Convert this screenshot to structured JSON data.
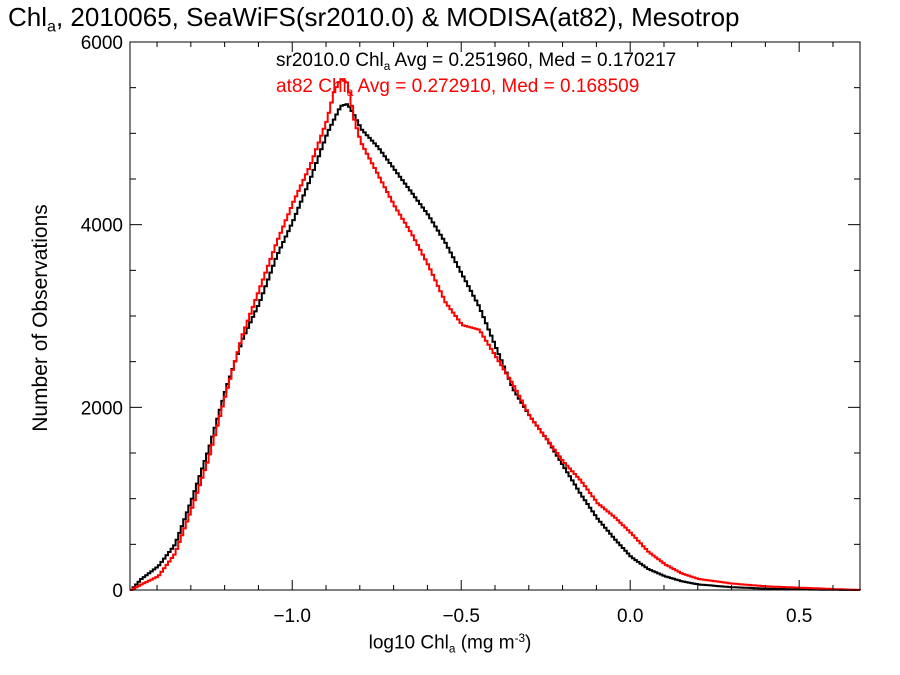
{
  "chart_data": {
    "type": "line",
    "title_parts": {
      "pre": "Chl",
      "sub": "a",
      "post": ", 2010065, SeaWiFS(sr2010.0) & MODISA(at82), Mesotrop"
    },
    "xlabel_parts": {
      "pre": "log10 Chl",
      "sub": "a",
      "mid": " (mg m",
      "sup": "-3",
      "post": ")"
    },
    "ylabel": "Number of Observations",
    "xlim": [
      -1.48,
      0.68
    ],
    "ylim": [
      0,
      6000
    ],
    "x_ticks": [
      -1.0,
      -0.5,
      0.0,
      0.5
    ],
    "x_tick_labels": [
      "−1.0",
      "−0.5",
      "0.0",
      "0.5"
    ],
    "y_ticks": [
      0,
      2000,
      4000,
      6000
    ],
    "y_tick_labels": [
      "0",
      "2000",
      "4000",
      "6000"
    ],
    "step_style": true,
    "series": [
      {
        "id": "black",
        "color": "#000000",
        "legend_parts": {
          "pre": "sr2010.0 Chl",
          "sub": "a",
          "post": " Avg = 0.251960, Med = 0.170217"
        },
        "points": [
          [
            -1.48,
            0
          ],
          [
            -1.45,
            120
          ],
          [
            -1.4,
            260
          ],
          [
            -1.35,
            500
          ],
          [
            -1.3,
            1000
          ],
          [
            -1.25,
            1550
          ],
          [
            -1.2,
            2200
          ],
          [
            -1.15,
            2750
          ],
          [
            -1.1,
            3150
          ],
          [
            -1.05,
            3650
          ],
          [
            -1.0,
            4050
          ],
          [
            -0.95,
            4500
          ],
          [
            -0.9,
            5000
          ],
          [
            -0.88,
            5150
          ],
          [
            -0.86,
            5300
          ],
          [
            -0.84,
            5320
          ],
          [
            -0.82,
            5200
          ],
          [
            -0.8,
            5050
          ],
          [
            -0.75,
            4850
          ],
          [
            -0.7,
            4600
          ],
          [
            -0.65,
            4350
          ],
          [
            -0.6,
            4100
          ],
          [
            -0.55,
            3800
          ],
          [
            -0.5,
            3450
          ],
          [
            -0.45,
            3100
          ],
          [
            -0.4,
            2650
          ],
          [
            -0.35,
            2200
          ],
          [
            -0.3,
            1900
          ],
          [
            -0.25,
            1650
          ],
          [
            -0.2,
            1350
          ],
          [
            -0.15,
            1050
          ],
          [
            -0.1,
            780
          ],
          [
            -0.05,
            560
          ],
          [
            0.0,
            360
          ],
          [
            0.05,
            230
          ],
          [
            0.1,
            150
          ],
          [
            0.15,
            95
          ],
          [
            0.2,
            60
          ],
          [
            0.3,
            30
          ],
          [
            0.4,
            15
          ],
          [
            0.5,
            6
          ],
          [
            0.6,
            2
          ],
          [
            0.68,
            0
          ]
        ]
      },
      {
        "id": "red",
        "color": "#ff0000",
        "legend_parts": {
          "pre": "at82 Chl",
          "sub": "a",
          "post": " Avg = 0.272910, Med = 0.168509"
        },
        "points": [
          [
            -1.48,
            0
          ],
          [
            -1.45,
            60
          ],
          [
            -1.4,
            150
          ],
          [
            -1.35,
            400
          ],
          [
            -1.3,
            900
          ],
          [
            -1.25,
            1450
          ],
          [
            -1.2,
            2150
          ],
          [
            -1.15,
            2800
          ],
          [
            -1.1,
            3300
          ],
          [
            -1.05,
            3800
          ],
          [
            -1.0,
            4250
          ],
          [
            -0.95,
            4650
          ],
          [
            -0.9,
            5150
          ],
          [
            -0.88,
            5450
          ],
          [
            -0.86,
            5600
          ],
          [
            -0.84,
            5550
          ],
          [
            -0.82,
            5150
          ],
          [
            -0.8,
            4900
          ],
          [
            -0.75,
            4550
          ],
          [
            -0.7,
            4200
          ],
          [
            -0.65,
            3900
          ],
          [
            -0.6,
            3550
          ],
          [
            -0.55,
            3150
          ],
          [
            -0.5,
            2900
          ],
          [
            -0.45,
            2850
          ],
          [
            -0.4,
            2550
          ],
          [
            -0.35,
            2250
          ],
          [
            -0.3,
            1900
          ],
          [
            -0.25,
            1650
          ],
          [
            -0.2,
            1400
          ],
          [
            -0.15,
            1200
          ],
          [
            -0.1,
            950
          ],
          [
            -0.05,
            800
          ],
          [
            0.0,
            620
          ],
          [
            0.05,
            420
          ],
          [
            0.1,
            280
          ],
          [
            0.15,
            180
          ],
          [
            0.2,
            120
          ],
          [
            0.3,
            70
          ],
          [
            0.4,
            40
          ],
          [
            0.5,
            25
          ],
          [
            0.6,
            10
          ],
          [
            0.68,
            0
          ]
        ]
      }
    ]
  }
}
